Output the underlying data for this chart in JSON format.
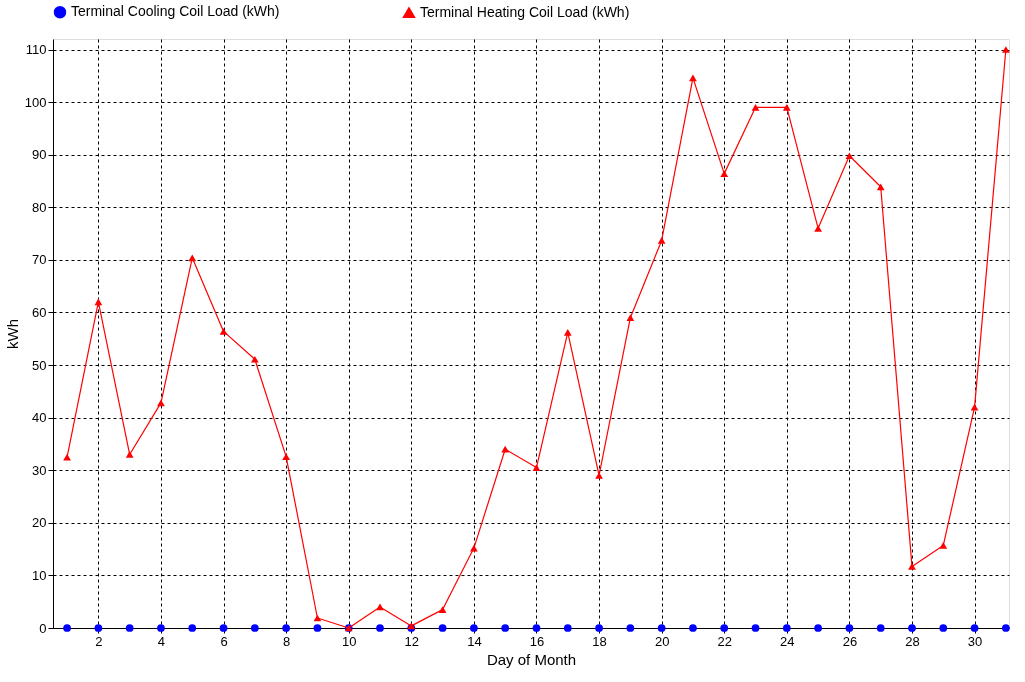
{
  "chart_data": {
    "type": "line",
    "xlabel": "Day of Month",
    "ylabel": "kWh",
    "x": [
      1,
      2,
      3,
      4,
      5,
      6,
      7,
      8,
      9,
      10,
      11,
      12,
      13,
      14,
      15,
      16,
      17,
      18,
      19,
      20,
      21,
      22,
      23,
      24,
      25,
      26,
      27,
      28,
      29,
      30,
      31
    ],
    "series": [
      {
        "name": "Terminal Cooling Coil Load (kWh)",
        "type": "scatter",
        "marker": "circle",
        "color": "#0000ff",
        "values": [
          0,
          0,
          0,
          0,
          0,
          0,
          0,
          0,
          0,
          0,
          0,
          0,
          0,
          0,
          0,
          0,
          0,
          0,
          0,
          0,
          0,
          0,
          0,
          0,
          0,
          0,
          0,
          0,
          0,
          0,
          0
        ]
      },
      {
        "name": "Terminal Heating Coil Load (kWh)",
        "marker": "triangle",
        "color": "#ff0000",
        "values": [
          32.5,
          62,
          33,
          42.8,
          70.4,
          56.4,
          51.1,
          32.6,
          1.9,
          0,
          4,
          0.4,
          3.5,
          15.2,
          34,
          30.5,
          56.2,
          29,
          59,
          73.7,
          104.6,
          86.4,
          99,
          99,
          76,
          89.8,
          83.9,
          11.7,
          15.7,
          42,
          110
        ]
      }
    ],
    "xlim": [
      0.55,
      31.1
    ],
    "xticks": [
      2,
      4,
      6,
      8,
      10,
      12,
      14,
      16,
      18,
      20,
      22,
      24,
      26,
      28,
      30
    ],
    "ylim": [
      0,
      112
    ],
    "yticks": [
      0,
      10,
      20,
      30,
      40,
      50,
      60,
      70,
      80,
      90,
      100,
      110
    ],
    "grid": true,
    "legend": "top"
  }
}
